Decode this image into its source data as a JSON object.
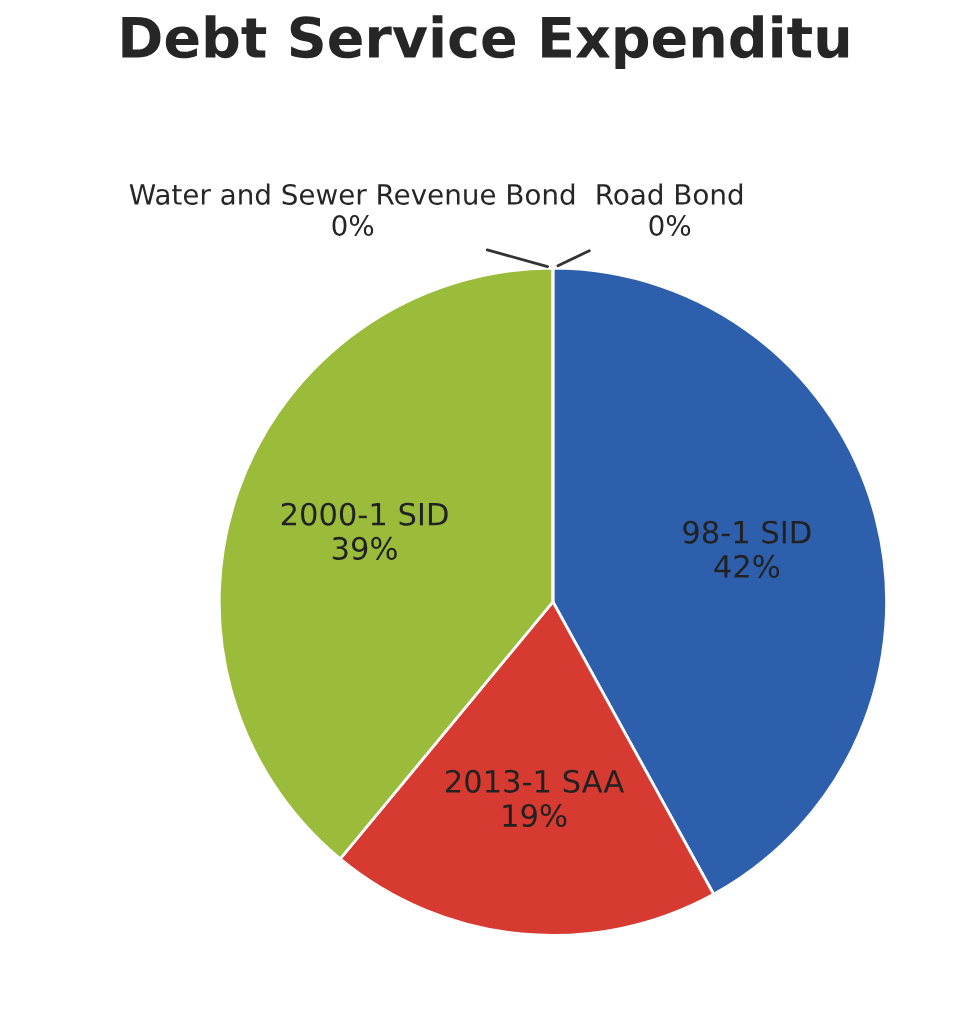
{
  "chart_data": {
    "type": "pie",
    "title": "Debt Service Expenditu",
    "categories": [
      "Road Bond",
      "98-1 SID",
      "2013-1 SAA",
      "2000-1 SID",
      "Water and Sewer Revenue Bond"
    ],
    "values": [
      0,
      42,
      19,
      39,
      0
    ],
    "colors": [
      "#7f6084",
      "#2e5fac",
      "#d63a30",
      "#9bbb3b",
      "#4bacc6"
    ],
    "value_labels": [
      "0%",
      "42%",
      "19%",
      "39%",
      "0%"
    ],
    "legend": false
  }
}
